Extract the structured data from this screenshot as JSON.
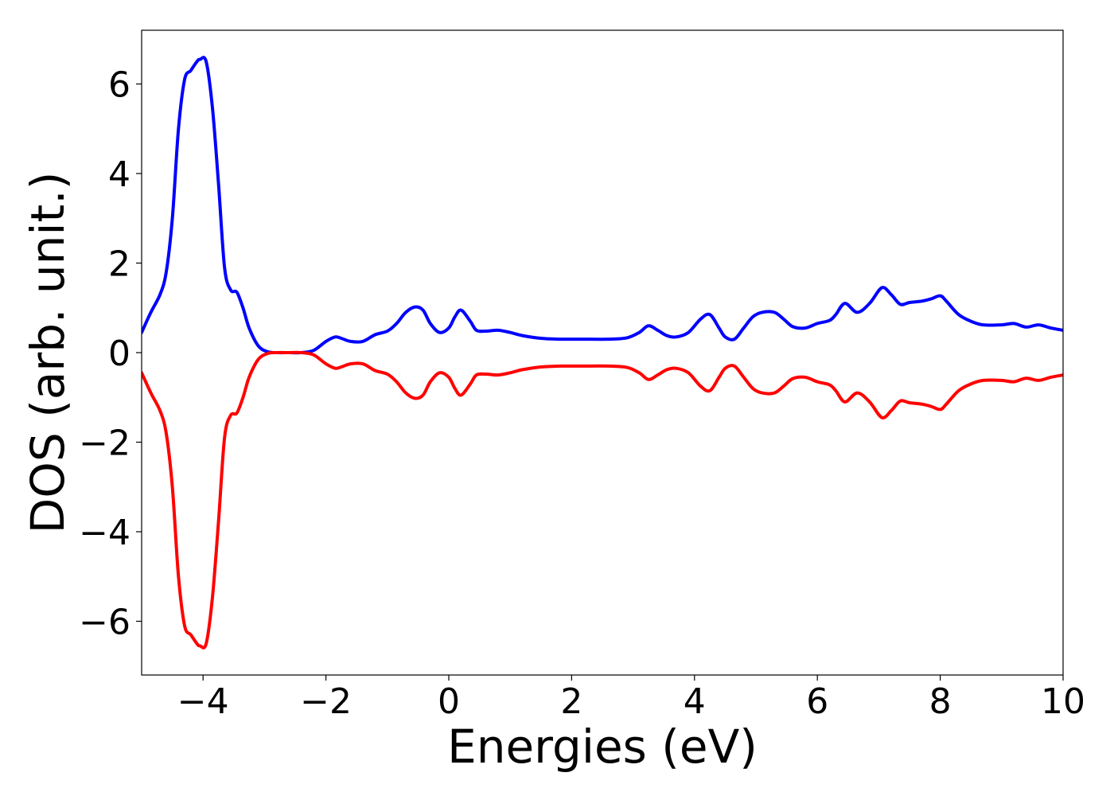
{
  "chart_data": {
    "type": "line",
    "xlabel": "Energies (eV)",
    "ylabel": "DOS (arb. unit.)",
    "title": "",
    "xlim": [
      -5,
      10
    ],
    "ylim": [
      -7.2,
      7.2
    ],
    "xticks": [
      -4,
      -2,
      0,
      2,
      4,
      6,
      8,
      10
    ],
    "xtick_labels": [
      "−4",
      "−2",
      "0",
      "2",
      "4",
      "6",
      "8",
      "10"
    ],
    "yticks": [
      -6,
      -4,
      -2,
      0,
      2,
      4,
      6
    ],
    "ytick_labels": [
      "−6",
      "−4",
      "−2",
      "0",
      "2",
      "4",
      "6"
    ],
    "grid": false,
    "series": [
      {
        "color": "#0000ff",
        "x": [
          -5.0,
          -4.85,
          -4.7,
          -4.6,
          -4.5,
          -4.4,
          -4.3,
          -4.2,
          -4.1,
          -4.05,
          -3.95,
          -3.85,
          -3.75,
          -3.65,
          -3.55,
          -3.45,
          -3.35,
          -3.25,
          -3.1,
          -2.95,
          -2.8,
          -2.6,
          -2.4,
          -2.2,
          -2.0,
          -1.85,
          -1.75,
          -1.6,
          -1.4,
          -1.2,
          -1.0,
          -0.85,
          -0.7,
          -0.55,
          -0.42,
          -0.3,
          -0.15,
          0.0,
          0.1,
          0.2,
          0.35,
          0.45,
          0.6,
          0.8,
          1.0,
          1.2,
          1.5,
          1.8,
          2.0,
          2.2,
          2.6,
          2.9,
          3.1,
          3.25,
          3.4,
          3.55,
          3.7,
          3.9,
          4.1,
          4.25,
          4.4,
          4.5,
          4.65,
          4.8,
          4.95,
          5.1,
          5.3,
          5.45,
          5.6,
          5.8,
          6.0,
          6.2,
          6.3,
          6.45,
          6.65,
          6.85,
          7.05,
          7.2,
          7.35,
          7.5,
          7.7,
          7.85,
          8.0,
          8.1,
          8.3,
          8.5,
          8.7,
          9.0,
          9.2,
          9.4,
          9.6,
          9.8,
          10.0
        ],
        "y": [
          0.45,
          0.9,
          1.3,
          1.8,
          3.0,
          5.0,
          6.1,
          6.3,
          6.5,
          6.55,
          6.5,
          5.5,
          3.8,
          1.9,
          1.4,
          1.35,
          1.0,
          0.55,
          0.15,
          0.02,
          0.0,
          0.0,
          0.0,
          0.05,
          0.25,
          0.35,
          0.32,
          0.25,
          0.25,
          0.4,
          0.48,
          0.65,
          0.9,
          1.02,
          0.95,
          0.65,
          0.45,
          0.55,
          0.8,
          0.95,
          0.7,
          0.5,
          0.48,
          0.5,
          0.45,
          0.38,
          0.32,
          0.3,
          0.3,
          0.3,
          0.3,
          0.33,
          0.45,
          0.6,
          0.5,
          0.38,
          0.35,
          0.45,
          0.75,
          0.85,
          0.55,
          0.35,
          0.3,
          0.55,
          0.8,
          0.9,
          0.9,
          0.75,
          0.58,
          0.55,
          0.65,
          0.72,
          0.85,
          1.1,
          0.9,
          1.1,
          1.45,
          1.3,
          1.08,
          1.12,
          1.15,
          1.2,
          1.27,
          1.15,
          0.85,
          0.7,
          0.62,
          0.62,
          0.65,
          0.57,
          0.62,
          0.55,
          0.5
        ]
      },
      {
        "color": "#ff0000",
        "x": [
          -5.0,
          -4.85,
          -4.7,
          -4.6,
          -4.5,
          -4.4,
          -4.3,
          -4.2,
          -4.1,
          -4.05,
          -3.95,
          -3.85,
          -3.75,
          -3.65,
          -3.55,
          -3.45,
          -3.35,
          -3.25,
          -3.1,
          -2.95,
          -2.8,
          -2.6,
          -2.4,
          -2.2,
          -2.0,
          -1.85,
          -1.75,
          -1.6,
          -1.4,
          -1.2,
          -1.0,
          -0.85,
          -0.7,
          -0.55,
          -0.42,
          -0.3,
          -0.15,
          0.0,
          0.1,
          0.2,
          0.35,
          0.45,
          0.6,
          0.8,
          1.0,
          1.2,
          1.5,
          1.8,
          2.0,
          2.2,
          2.6,
          2.9,
          3.1,
          3.25,
          3.4,
          3.55,
          3.7,
          3.9,
          4.1,
          4.25,
          4.4,
          4.5,
          4.65,
          4.8,
          4.95,
          5.1,
          5.3,
          5.45,
          5.6,
          5.8,
          6.0,
          6.2,
          6.3,
          6.45,
          6.65,
          6.85,
          7.05,
          7.2,
          7.35,
          7.5,
          7.7,
          7.85,
          8.0,
          8.1,
          8.3,
          8.5,
          8.7,
          9.0,
          9.2,
          9.4,
          9.6,
          9.8,
          10.0
        ],
        "y": [
          -0.45,
          -0.9,
          -1.3,
          -1.8,
          -3.0,
          -5.0,
          -6.1,
          -6.3,
          -6.5,
          -6.55,
          -6.5,
          -5.5,
          -3.8,
          -1.9,
          -1.4,
          -1.35,
          -1.0,
          -0.55,
          -0.15,
          -0.02,
          0.0,
          0.0,
          0.0,
          -0.05,
          -0.25,
          -0.35,
          -0.32,
          -0.25,
          -0.25,
          -0.4,
          -0.48,
          -0.65,
          -0.9,
          -1.02,
          -0.95,
          -0.65,
          -0.45,
          -0.55,
          -0.8,
          -0.95,
          -0.7,
          -0.5,
          -0.48,
          -0.5,
          -0.45,
          -0.38,
          -0.32,
          -0.3,
          -0.3,
          -0.3,
          -0.3,
          -0.33,
          -0.45,
          -0.6,
          -0.5,
          -0.38,
          -0.35,
          -0.45,
          -0.75,
          -0.85,
          -0.55,
          -0.35,
          -0.3,
          -0.55,
          -0.8,
          -0.9,
          -0.9,
          -0.75,
          -0.58,
          -0.55,
          -0.65,
          -0.72,
          -0.85,
          -1.1,
          -0.9,
          -1.1,
          -1.45,
          -1.3,
          -1.08,
          -1.12,
          -1.15,
          -1.2,
          -1.27,
          -1.15,
          -0.85,
          -0.7,
          -0.62,
          -0.62,
          -0.65,
          -0.57,
          -0.62,
          -0.55,
          -0.5
        ]
      }
    ]
  }
}
